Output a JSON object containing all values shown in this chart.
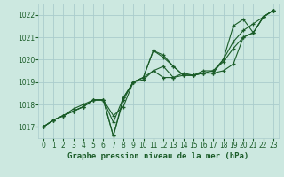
{
  "title": "Graphe pression niveau de la mer (hPa)",
  "background_color": "#cce8e0",
  "grid_color": "#aacccc",
  "line_color": "#1a5c28",
  "xlim": [
    -0.5,
    23.5
  ],
  "ylim": [
    1016.5,
    1022.5
  ],
  "yticks": [
    1017,
    1018,
    1019,
    1020,
    1021,
    1022
  ],
  "xticks": [
    0,
    1,
    2,
    3,
    4,
    5,
    6,
    7,
    8,
    9,
    10,
    11,
    12,
    13,
    14,
    15,
    16,
    17,
    18,
    19,
    20,
    21,
    22,
    23
  ],
  "series": [
    [
      1017.0,
      1017.3,
      1017.5,
      1017.7,
      1017.9,
      1018.2,
      1018.2,
      1017.5,
      1017.9,
      1019.0,
      1019.1,
      1019.5,
      1019.7,
      1019.2,
      1019.3,
      1019.3,
      1019.4,
      1019.4,
      1019.5,
      1019.8,
      1021.0,
      1021.2,
      1021.9,
      1022.2
    ],
    [
      1017.0,
      1017.3,
      1017.5,
      1017.7,
      1017.9,
      1018.2,
      1018.2,
      1016.6,
      1018.2,
      1019.0,
      1019.2,
      1020.4,
      1020.1,
      1019.7,
      1019.3,
      1019.3,
      1019.4,
      1019.4,
      1020.0,
      1020.8,
      1021.3,
      1021.6,
      1021.9,
      1022.2
    ],
    [
      1017.0,
      1017.3,
      1017.5,
      1017.8,
      1018.0,
      1018.2,
      1018.2,
      1017.2,
      1018.3,
      1019.0,
      1019.2,
      1019.5,
      1019.2,
      1019.2,
      1019.4,
      1019.3,
      1019.5,
      1019.5,
      1019.9,
      1020.5,
      1021.0,
      1021.2,
      1021.9,
      1022.2
    ],
    [
      1017.0,
      1017.3,
      1017.5,
      1017.7,
      1017.9,
      1018.2,
      1018.2,
      1016.6,
      1018.3,
      1019.0,
      1019.2,
      1020.4,
      1020.2,
      1019.7,
      1019.3,
      1019.3,
      1019.4,
      1019.5,
      1020.0,
      1021.5,
      1021.8,
      1021.2,
      1021.9,
      1022.2
    ]
  ],
  "title_fontsize": 6.5,
  "tick_fontsize": 5.5
}
